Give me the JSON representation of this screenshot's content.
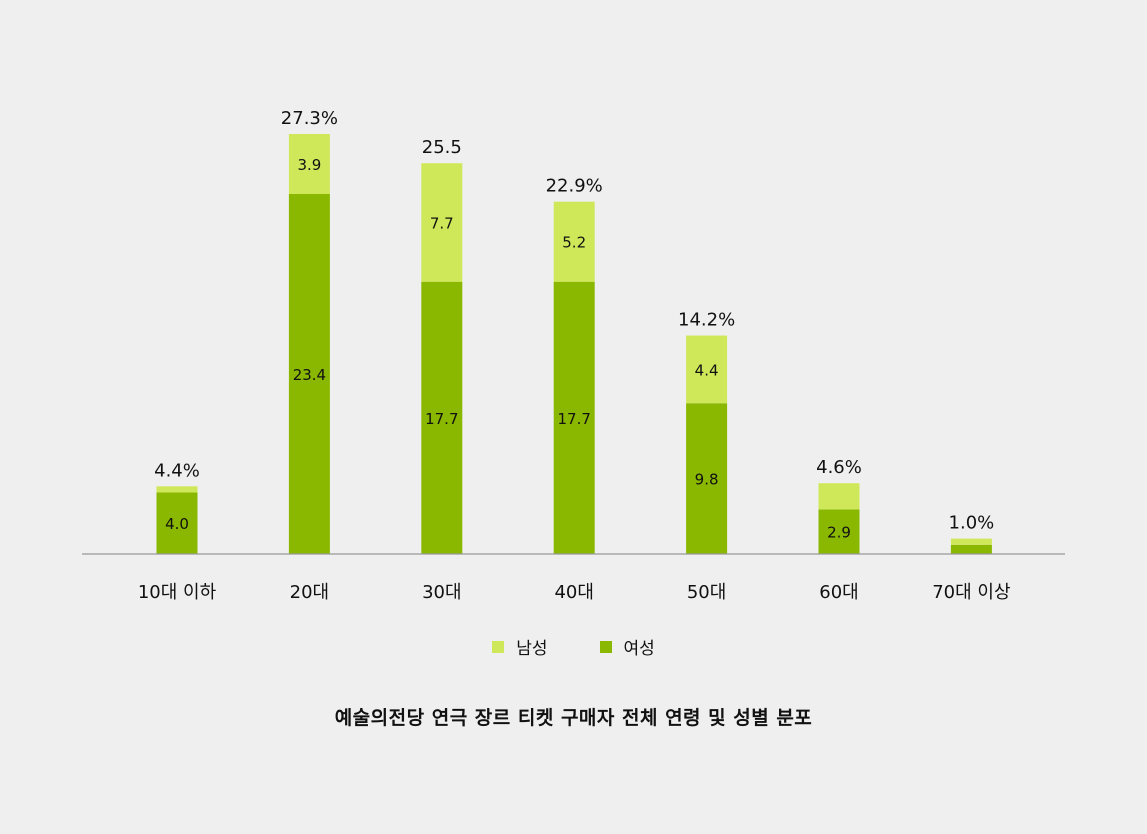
{
  "colors": {
    "male": "#cfe85a",
    "female": "#8ab800",
    "axis": "#999999",
    "background": "#efefef"
  },
  "legend": {
    "male_label": "남성",
    "female_label": "여성"
  },
  "caption": "예술의전당 연극 장르 티켓 구매자 전체 연령 및 성별 분포",
  "chart_data": {
    "type": "bar",
    "stacked": true,
    "categories": [
      "10대 이하",
      "20대",
      "30대",
      "40대",
      "50대",
      "60대",
      "70대 이상"
    ],
    "series": [
      {
        "name": "여성",
        "values": [
          4.0,
          23.4,
          17.7,
          17.7,
          9.8,
          2.9,
          0.6
        ]
      },
      {
        "name": "남성",
        "values": [
          0.4,
          3.9,
          7.7,
          5.2,
          4.4,
          1.7,
          0.4
        ]
      }
    ],
    "segment_labels": {
      "여성": [
        "4.0",
        "23.4",
        "17.7",
        "17.7",
        "9.8",
        "2.9",
        ""
      ],
      "남성": [
        "",
        "3.9",
        "7.7",
        "5.2",
        "4.4",
        "",
        ""
      ]
    },
    "totals": [
      4.4,
      27.3,
      25.5,
      22.9,
      14.2,
      4.6,
      1.0
    ],
    "total_labels": [
      "4.4%",
      "27.3%",
      "25.5",
      "22.9%",
      "14.2%",
      "4.6%",
      "1.0%"
    ],
    "ylim": [
      0,
      27.3
    ],
    "grid": false,
    "legend_position": "bottom"
  }
}
